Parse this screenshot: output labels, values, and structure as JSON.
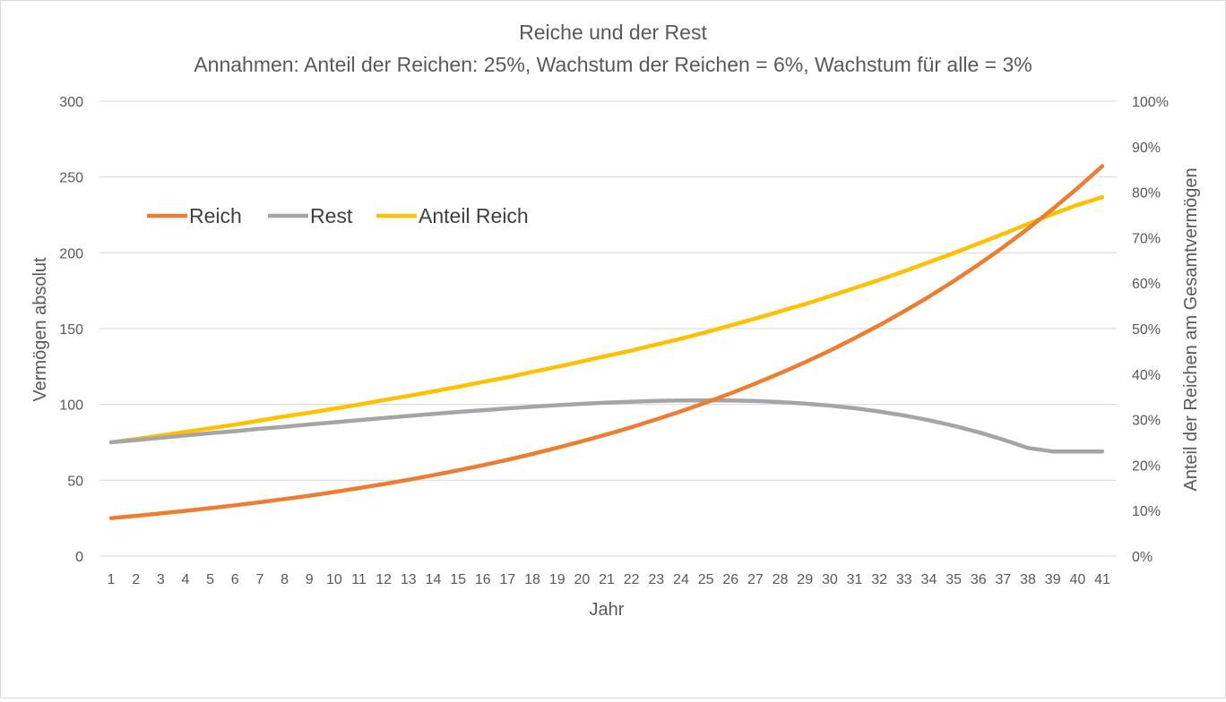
{
  "chart_data": {
    "type": "line",
    "title": "Reiche und der Rest",
    "subtitle": "Annahmen: Anteil der Reichen: 25%, Wachstum der Reichen = 6%, Wachstum für alle = 3%",
    "xlabel": "Jahr",
    "ylabel": "Vermögen absolut",
    "y2label": "Anteil der Reichen am Gesamtvermögen",
    "categories": [
      "1",
      "2",
      "3",
      "4",
      "5",
      "6",
      "7",
      "8",
      "9",
      "10",
      "11",
      "12",
      "13",
      "14",
      "15",
      "16",
      "17",
      "18",
      "19",
      "20",
      "21",
      "22",
      "23",
      "24",
      "25",
      "26",
      "27",
      "28",
      "29",
      "30",
      "31",
      "32",
      "33",
      "34",
      "35",
      "36",
      "37",
      "38",
      "39",
      "40",
      "41"
    ],
    "ylim": [
      0,
      300
    ],
    "yticks": [
      "0",
      "50",
      "100",
      "150",
      "200",
      "250",
      "300"
    ],
    "y2lim": [
      0,
      1
    ],
    "y2ticks": [
      "0%",
      "10%",
      "20%",
      "30%",
      "40%",
      "50%",
      "60%",
      "70%",
      "80%",
      "90%",
      "100%"
    ],
    "grid": true,
    "legend_position": "upper-left",
    "series": [
      {
        "name": "Reich",
        "axis": "left",
        "color": "#ed7d31",
        "values": [
          25,
          26.5,
          28.1,
          29.8,
          31.6,
          33.5,
          35.5,
          37.6,
          39.8,
          42.2,
          44.8,
          47.5,
          50.3,
          53.3,
          56.5,
          59.9,
          63.5,
          67.3,
          71.4,
          75.7,
          80.2,
          85.0,
          90.1,
          95.5,
          101.2,
          107.3,
          113.8,
          120.6,
          127.8,
          135.5,
          143.6,
          152.2,
          161.4,
          171.0,
          181.3,
          192.2,
          203.7,
          215.9,
          228.9,
          242.6,
          257.2
        ]
      },
      {
        "name": "Rest",
        "axis": "left",
        "color": "#a5a5a5",
        "values": [
          75,
          76.5,
          78.0,
          79.5,
          81.0,
          82.4,
          83.9,
          85.3,
          86.8,
          88.2,
          89.6,
          91.0,
          92.4,
          93.7,
          95.0,
          96.2,
          97.4,
          98.5,
          99.5,
          100.4,
          101.2,
          101.8,
          102.3,
          102.6,
          102.7,
          102.6,
          102.2,
          101.6,
          100.6,
          99.2,
          97.5,
          95.3,
          92.7,
          89.6,
          86.0,
          81.7,
          76.8,
          71.3,
          69.0,
          69.0,
          69.0
        ]
      },
      {
        "name": "Anteil Reich",
        "axis": "right",
        "color": "#ffc000",
        "values": [
          0.25,
          0.257,
          0.265,
          0.273,
          0.281,
          0.289,
          0.298,
          0.307,
          0.315,
          0.324,
          0.333,
          0.343,
          0.352,
          0.362,
          0.372,
          0.383,
          0.393,
          0.405,
          0.416,
          0.428,
          0.44,
          0.452,
          0.465,
          0.478,
          0.492,
          0.507,
          0.522,
          0.538,
          0.554,
          0.571,
          0.589,
          0.607,
          0.626,
          0.646,
          0.666,
          0.687,
          0.708,
          0.73,
          0.752,
          0.772,
          0.789
        ]
      }
    ]
  }
}
